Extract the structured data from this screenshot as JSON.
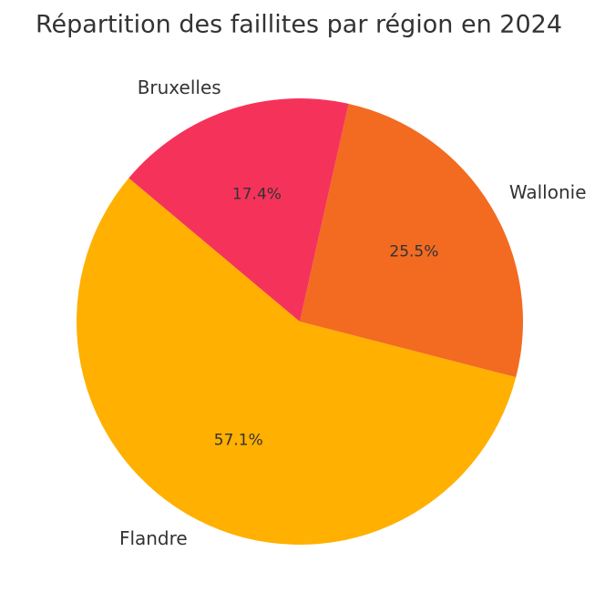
{
  "chart_data": {
    "type": "pie",
    "title": "Répartition des faillites par région en 2024",
    "categories": [
      "Flandre",
      "Wallonie",
      "Bruxelles"
    ],
    "values": [
      57.1,
      25.5,
      17.4
    ],
    "value_labels": [
      "57.1%",
      "25.5%",
      "17.4%"
    ],
    "colors": [
      "#ffb000",
      "#f26b21",
      "#f5335a"
    ]
  }
}
